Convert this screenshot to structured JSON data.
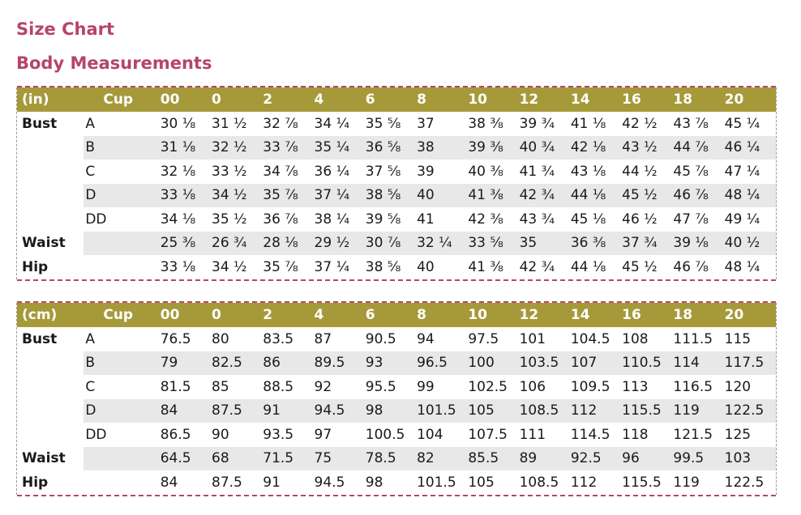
{
  "title": "Size Chart",
  "subtitle": "Body Measurements",
  "sizes": [
    "00",
    "0",
    "2",
    "4",
    "6",
    "8",
    "10",
    "12",
    "14",
    "16",
    "18",
    "20"
  ],
  "cup_header": "Cup",
  "tables": [
    {
      "unit": "(in)",
      "rows": [
        {
          "measure": "Bust",
          "cup": "A",
          "values": [
            "30 ⅛",
            "31 ½",
            "32 ⅞",
            "34 ¼",
            "35 ⅝",
            "37",
            "38 ⅜",
            "39 ¾",
            "41 ⅛",
            "42 ½",
            "43 ⅞",
            "45 ¼"
          ]
        },
        {
          "measure": "",
          "cup": "B",
          "values": [
            "31 ⅛",
            "32 ½",
            "33 ⅞",
            "35 ¼",
            "36 ⅝",
            "38",
            "39 ⅜",
            "40 ¾",
            "42 ⅛",
            "43 ½",
            "44 ⅞",
            "46 ¼"
          ]
        },
        {
          "measure": "",
          "cup": "C",
          "values": [
            "32 ⅛",
            "33 ½",
            "34 ⅞",
            "36 ¼",
            "37 ⅝",
            "39",
            "40 ⅜",
            "41 ¾",
            "43 ⅛",
            "44 ½",
            "45 ⅞",
            "47 ¼"
          ]
        },
        {
          "measure": "",
          "cup": "D",
          "values": [
            "33 ⅛",
            "34 ½",
            "35 ⅞",
            "37 ¼",
            "38 ⅝",
            "40",
            "41 ⅜",
            "42 ¾",
            "44 ⅛",
            "45 ½",
            "46 ⅞",
            "48 ¼"
          ]
        },
        {
          "measure": "",
          "cup": "DD",
          "values": [
            "34 ⅛",
            "35 ½",
            "36 ⅞",
            "38 ¼",
            "39 ⅝",
            "41",
            "42 ⅜",
            "43 ¾",
            "45 ⅛",
            "46 ½",
            "47 ⅞",
            "49 ¼"
          ]
        },
        {
          "measure": "Waist",
          "cup": "",
          "values": [
            "25 ⅜",
            "26 ¾",
            "28 ⅛",
            "29 ½",
            "30 ⅞",
            "32 ¼",
            "33 ⅝",
            "35",
            "36 ⅜",
            "37 ¾",
            "39 ⅛",
            "40 ½"
          ]
        },
        {
          "measure": "Hip",
          "cup": "",
          "values": [
            "33 ⅛",
            "34 ½",
            "35 ⅞",
            "37 ¼",
            "38 ⅝",
            "40",
            "41 ⅜",
            "42 ¾",
            "44 ⅛",
            "45 ½",
            "46 ⅞",
            "48 ¼"
          ]
        }
      ]
    },
    {
      "unit": "(cm)",
      "rows": [
        {
          "measure": "Bust",
          "cup": "A",
          "values": [
            "76.5",
            "80",
            "83.5",
            "87",
            "90.5",
            "94",
            "97.5",
            "101",
            "104.5",
            "108",
            "111.5",
            "115"
          ]
        },
        {
          "measure": "",
          "cup": "B",
          "values": [
            "79",
            "82.5",
            "86",
            "89.5",
            "93",
            "96.5",
            "100",
            "103.5",
            "107",
            "110.5",
            "114",
            "117.5"
          ]
        },
        {
          "measure": "",
          "cup": "C",
          "values": [
            "81.5",
            "85",
            "88.5",
            "92",
            "95.5",
            "99",
            "102.5",
            "106",
            "109.5",
            "113",
            "116.5",
            "120"
          ]
        },
        {
          "measure": "",
          "cup": "D",
          "values": [
            "84",
            "87.5",
            "91",
            "94.5",
            "98",
            "101.5",
            "105",
            "108.5",
            "112",
            "115.5",
            "119",
            "122.5"
          ]
        },
        {
          "measure": "",
          "cup": "DD",
          "values": [
            "86.5",
            "90",
            "93.5",
            "97",
            "100.5",
            "104",
            "107.5",
            "111",
            "114.5",
            "118",
            "121.5",
            "125"
          ]
        },
        {
          "measure": "Waist",
          "cup": "",
          "values": [
            "64.5",
            "68",
            "71.5",
            "75",
            "78.5",
            "82",
            "85.5",
            "89",
            "92.5",
            "96",
            "99.5",
            "103"
          ]
        },
        {
          "measure": "Hip",
          "cup": "",
          "values": [
            "84",
            "87.5",
            "91",
            "94.5",
            "98",
            "101.5",
            "105",
            "108.5",
            "112",
            "115.5",
            "119",
            "122.5"
          ]
        }
      ]
    }
  ],
  "colors": {
    "heading": "#b5446e",
    "header_bar": "#a6993a",
    "row_shade": "#e8e8e8"
  }
}
